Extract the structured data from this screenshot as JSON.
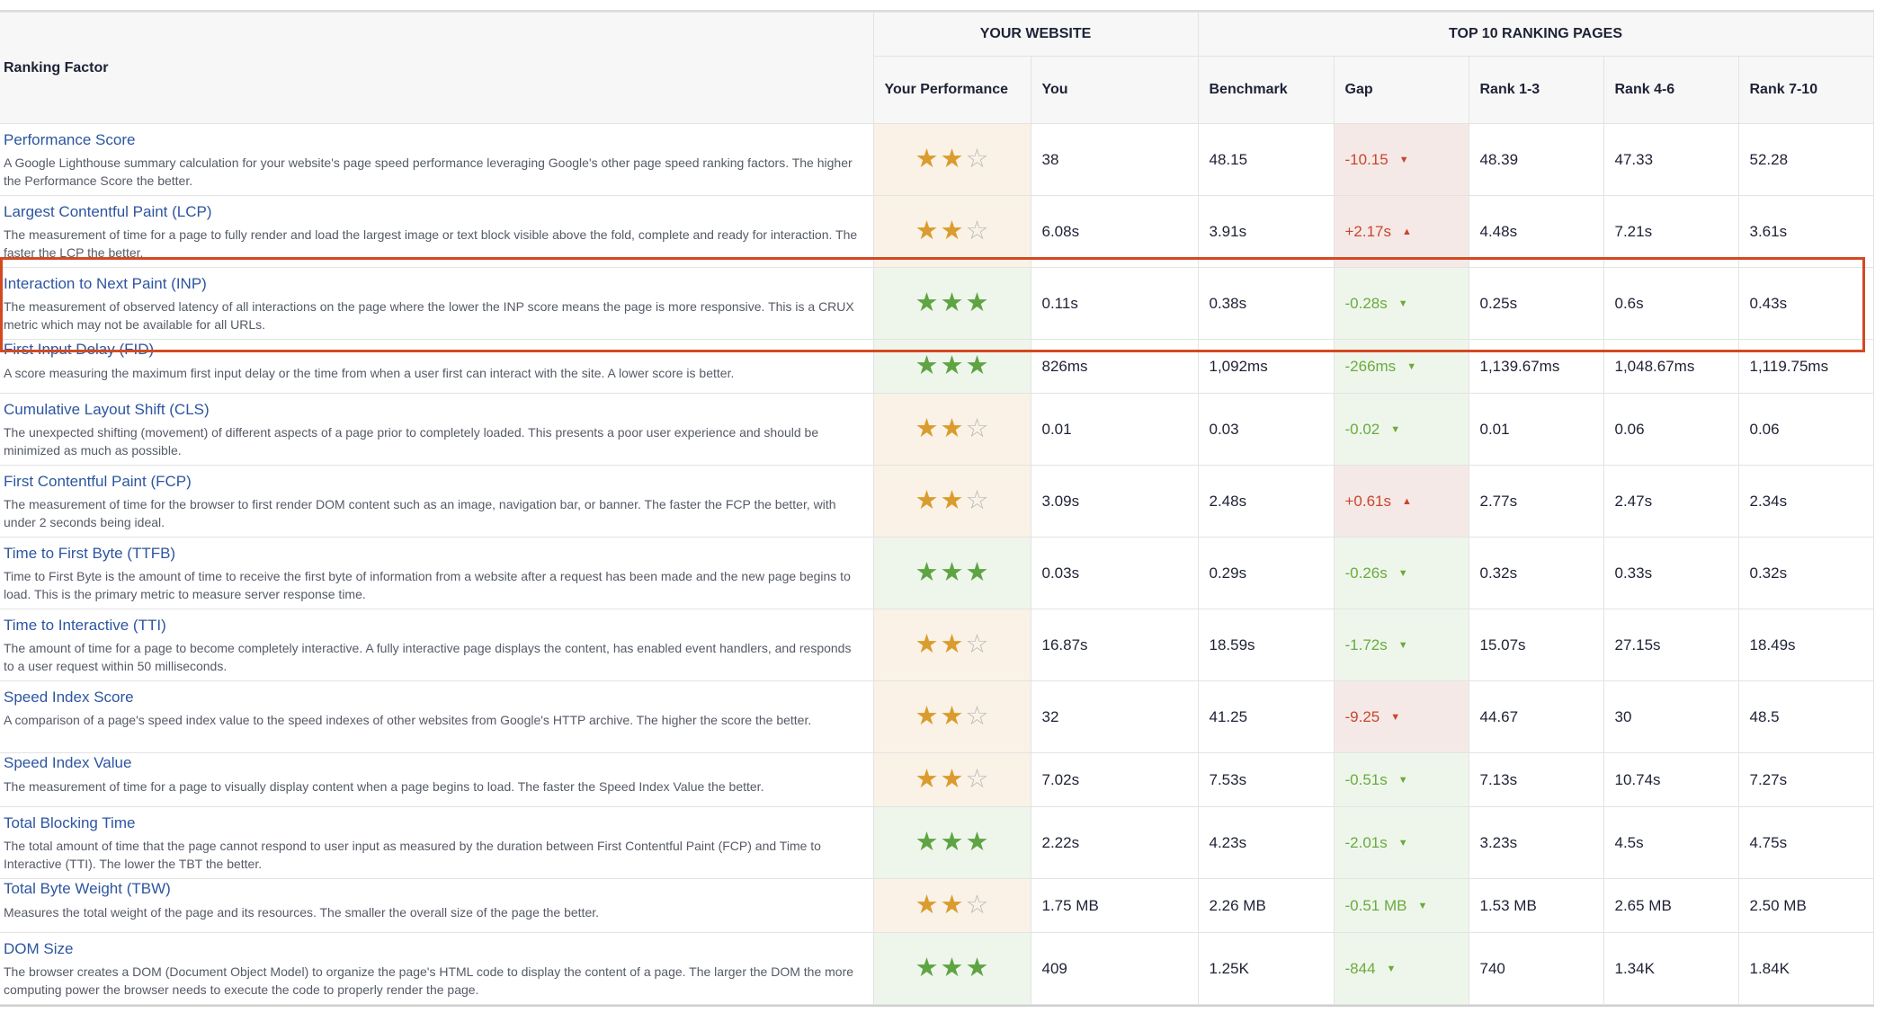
{
  "header": {
    "group_your_website": "YOUR WEBSITE",
    "group_top10": "TOP 10 RANKING PAGES",
    "columns": [
      "Ranking Factor",
      "Your Performance",
      "You",
      "Benchmark",
      "Gap",
      "Rank 1-3",
      "Rank 4-6",
      "Rank 7-10"
    ]
  },
  "colors": {
    "bad": "#c9462a",
    "good": "#6aab3c",
    "highlight_box": "#d24a22",
    "link": "#2d55a0"
  },
  "highlighted_row": "Interaction to Next Paint (INP)",
  "rows": [
    {
      "title": "Performance Score",
      "desc": "A Google Lighthouse summary calculation for your website's page speed performance leveraging Google's other page speed ranking factors. The higher the Performance Score the better.",
      "stars": 2,
      "you": "38",
      "benchmark": "48.15",
      "gap": "-10.15",
      "gap_status": "bad",
      "gap_arrow": "down",
      "rank_1_3": "48.39",
      "rank_4_6": "47.33",
      "rank_7_10": "52.28"
    },
    {
      "title": "Largest Contentful Paint (LCP)",
      "desc": "The measurement of time for a page to fully render and load the largest image or text block visible above the fold, complete and ready for interaction. The faster the LCP the better.",
      "stars": 2,
      "you": "6.08s",
      "benchmark": "3.91s",
      "gap": "+2.17s",
      "gap_status": "bad",
      "gap_arrow": "up",
      "rank_1_3": "4.48s",
      "rank_4_6": "7.21s",
      "rank_7_10": "3.61s"
    },
    {
      "title": "Interaction to Next Paint (INP)",
      "desc": "The measurement of observed latency of all interactions on the page where the lower the INP score means the page is more responsive. This is a CRUX metric which may not be available for all URLs.",
      "stars": 3,
      "you": "0.11s",
      "benchmark": "0.38s",
      "gap": "-0.28s",
      "gap_status": "good",
      "gap_arrow": "down",
      "rank_1_3": "0.25s",
      "rank_4_6": "0.6s",
      "rank_7_10": "0.43s"
    },
    {
      "title": "First Input Delay (FID)",
      "desc": "A score measuring the maximum first input delay or the time from when a user first can interact with the site. A lower score is better.",
      "stars": 3,
      "you": "826ms",
      "benchmark": "1,092ms",
      "gap": "-266ms",
      "gap_status": "good",
      "gap_arrow": "down",
      "rank_1_3": "1,139.67ms",
      "rank_4_6": "1,048.67ms",
      "rank_7_10": "1,119.75ms"
    },
    {
      "title": "Cumulative Layout Shift (CLS)",
      "desc": "The unexpected shifting (movement) of different aspects of a page prior to completely loaded. This presents a poor user experience and should be minimized as much as possible.",
      "stars": 2,
      "you": "0.01",
      "benchmark": "0.03",
      "gap": "-0.02",
      "gap_status": "good",
      "gap_arrow": "down",
      "rank_1_3": "0.01",
      "rank_4_6": "0.06",
      "rank_7_10": "0.06"
    },
    {
      "title": "First Contentful Paint (FCP)",
      "desc": "The measurement of time for the browser to first render DOM content such as an image, navigation bar, or banner. The faster the FCP the better, with under 2 seconds being ideal.",
      "stars": 2,
      "you": "3.09s",
      "benchmark": "2.48s",
      "gap": "+0.61s",
      "gap_status": "bad",
      "gap_arrow": "up",
      "rank_1_3": "2.77s",
      "rank_4_6": "2.47s",
      "rank_7_10": "2.34s"
    },
    {
      "title": "Time to First Byte (TTFB)",
      "desc": "Time to First Byte is the amount of time to receive the first byte of information from a website after a request has been made and the new page begins to load. This is the primary metric to measure server response time.",
      "stars": 3,
      "you": "0.03s",
      "benchmark": "0.29s",
      "gap": "-0.26s",
      "gap_status": "good",
      "gap_arrow": "down",
      "rank_1_3": "0.32s",
      "rank_4_6": "0.33s",
      "rank_7_10": "0.32s"
    },
    {
      "title": "Time to Interactive (TTI)",
      "desc": "The amount of time for a page to become completely interactive. A fully interactive page displays the content, has enabled event handlers, and responds to a user request within 50 milliseconds.",
      "stars": 2,
      "you": "16.87s",
      "benchmark": "18.59s",
      "gap": "-1.72s",
      "gap_status": "good",
      "gap_arrow": "down",
      "rank_1_3": "15.07s",
      "rank_4_6": "27.15s",
      "rank_7_10": "18.49s"
    },
    {
      "title": "Speed Index Score",
      "desc": "A comparison of a page's speed index value to the speed indexes of other websites from Google's HTTP archive. The higher the score the better.",
      "stars": 2,
      "you": "32",
      "benchmark": "41.25",
      "gap": "-9.25",
      "gap_status": "bad",
      "gap_arrow": "down",
      "rank_1_3": "44.67",
      "rank_4_6": "30",
      "rank_7_10": "48.5"
    },
    {
      "title": "Speed Index Value",
      "desc": "The measurement of time for a page to visually display content when a page begins to load. The faster the Speed Index Value the better.",
      "stars": 2,
      "you": "7.02s",
      "benchmark": "7.53s",
      "gap": "-0.51s",
      "gap_status": "good",
      "gap_arrow": "down",
      "rank_1_3": "7.13s",
      "rank_4_6": "10.74s",
      "rank_7_10": "7.27s"
    },
    {
      "title": "Total Blocking Time",
      "desc": "The total amount of time that the page cannot respond to user input as measured by the duration between First Contentful Paint (FCP) and Time to Interactive (TTI). The lower the TBT the better.",
      "stars": 3,
      "you": "2.22s",
      "benchmark": "4.23s",
      "gap": "-2.01s",
      "gap_status": "good",
      "gap_arrow": "down",
      "rank_1_3": "3.23s",
      "rank_4_6": "4.5s",
      "rank_7_10": "4.75s"
    },
    {
      "title": "Total Byte Weight (TBW)",
      "desc": "Measures the total weight of the page and its resources. The smaller the overall size of the page the better.",
      "stars": 2,
      "you": "1.75 MB",
      "benchmark": "2.26 MB",
      "gap": "-0.51 MB",
      "gap_status": "good",
      "gap_arrow": "down",
      "rank_1_3": "1.53 MB",
      "rank_4_6": "2.65 MB",
      "rank_7_10": "2.50 MB"
    },
    {
      "title": "DOM Size",
      "desc": "The browser creates a DOM (Document Object Model) to organize the page's HTML code to display the content of a page. The larger the DOM the more computing power the browser needs to execute the code to properly render the page.",
      "stars": 3,
      "you": "409",
      "benchmark": "1.25K",
      "gap": "-844",
      "gap_status": "good",
      "gap_arrow": "down",
      "rank_1_3": "740",
      "rank_4_6": "1.34K",
      "rank_7_10": "1.84K"
    }
  ]
}
